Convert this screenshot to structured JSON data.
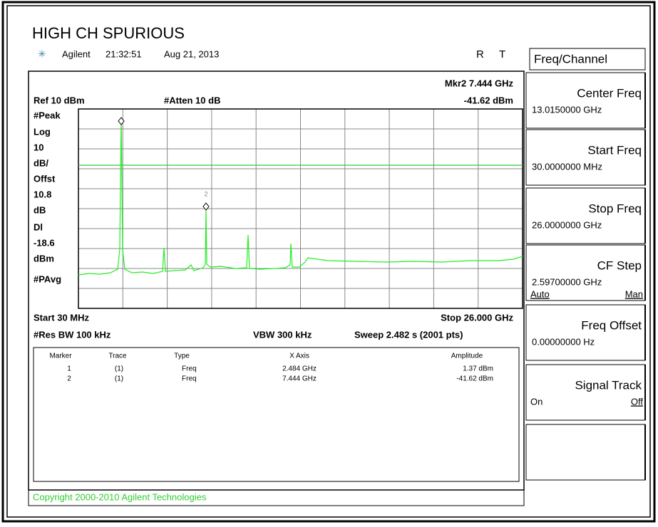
{
  "title": "HIGH CH SPURIOUS",
  "header": {
    "brand": "Agilent",
    "time": "21:32:51",
    "date": "Aug 21, 2013",
    "flags": [
      "R",
      "T"
    ]
  },
  "screen": {
    "marker_readout": "Mkr2  7.444 GHz",
    "marker_amplitude": "-41.62 dBm",
    "ref": "Ref 10 dBm",
    "atten": "#Atten 10 dB",
    "left_labels": [
      "#Peak",
      "Log",
      "10",
      "dB/",
      "Offst",
      "10.8",
      "dB",
      "Dl",
      "-18.6",
      "dBm",
      "#PAvg"
    ],
    "start": "Start 30 MHz",
    "stop": "Stop 26.000 GHz",
    "res_bw": "#Res BW 100 kHz",
    "vbw": "VBW 300 kHz",
    "sweep": "Sweep 2.482 s (2001 pts)",
    "marker2_tag": "2"
  },
  "marker_table": {
    "columns": [
      "Marker",
      "Trace",
      "Type",
      "X Axis",
      "Amplitude"
    ],
    "rows": [
      [
        "1",
        "(1)",
        "Freq",
        "2.484 GHz",
        "1.37 dBm"
      ],
      [
        "2",
        "(1)",
        "Freq",
        "7.444 GHz",
        "-41.62 dBm"
      ]
    ]
  },
  "softkeys": {
    "menu": "Freq/Channel",
    "keys": [
      {
        "label": "Center Freq",
        "value": "13.0150000 GHz"
      },
      {
        "label": "Start Freq",
        "value": "30.0000000 MHz"
      },
      {
        "label": "Stop Freq",
        "value": "26.0000000 GHz"
      },
      {
        "label": "CF Step",
        "value": "2.59700000 GHz",
        "options": [
          "Auto",
          "Man"
        ]
      },
      {
        "label": "Freq Offset",
        "value": "0.00000000  Hz"
      },
      {
        "label": "Signal Track",
        "options": [
          "On",
          "Off"
        ]
      }
    ]
  },
  "copyright": "Copyright 2000-2010 Agilent Technologies"
}
